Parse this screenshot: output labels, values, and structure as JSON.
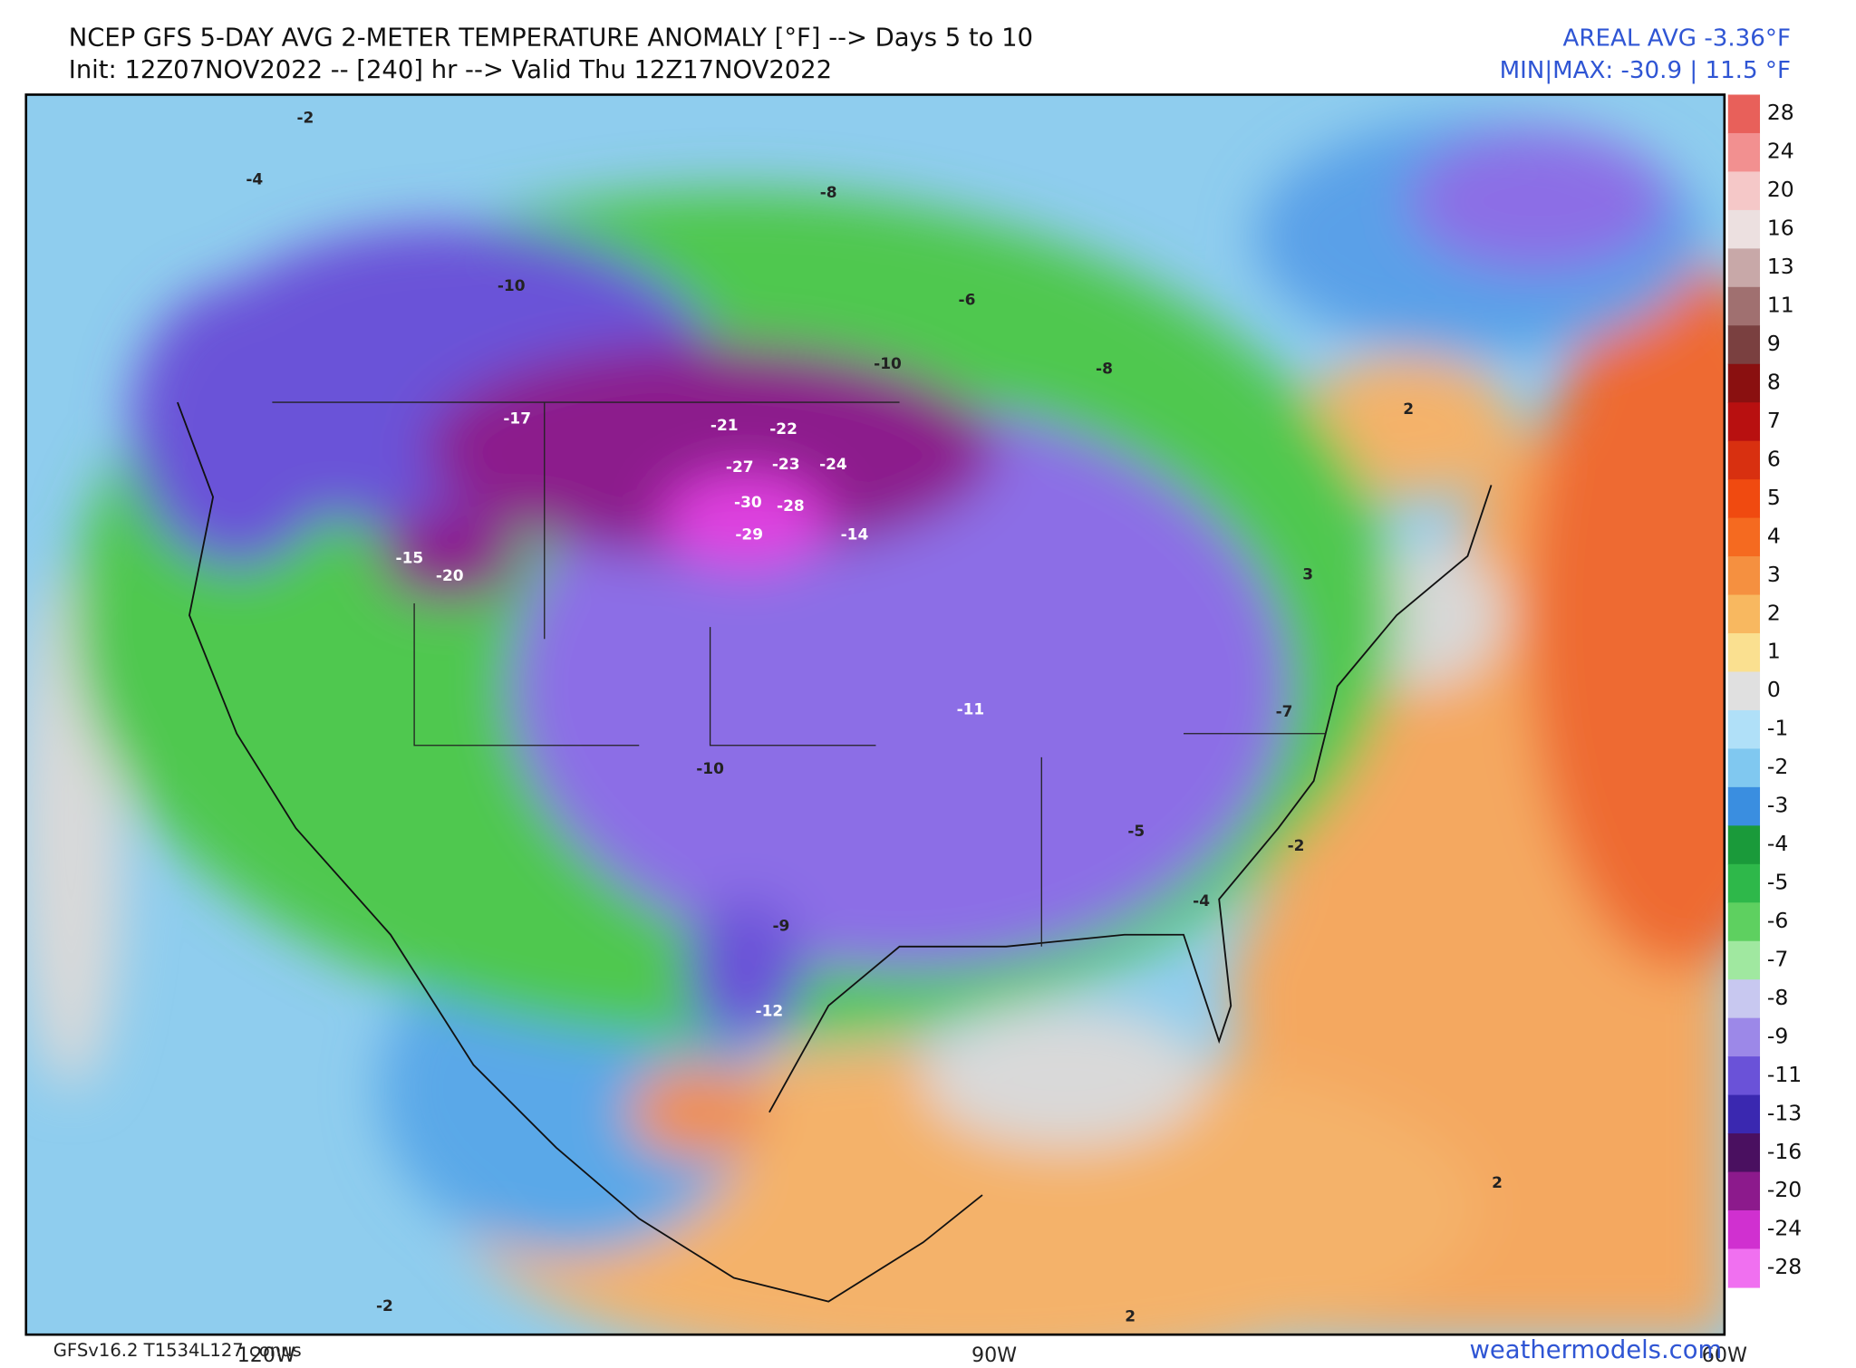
{
  "header": {
    "title": "NCEP GFS 5-DAY AVG 2-METER TEMPERATURE ANOMALY [°F] --> Days 5 to 10",
    "subtitle": "Init: 12Z07NOV2022 -- [240] hr --> Valid Thu 12Z17NOV2022",
    "areal_avg": "AREAL AVG -3.36°F",
    "min_max": "MIN|MAX: -30.9 | 11.5 °F"
  },
  "colorbar": {
    "levels": [
      28,
      24,
      20,
      16,
      13,
      11,
      9,
      8,
      7,
      6,
      5,
      4,
      3,
      2,
      1,
      0,
      -1,
      -2,
      -3,
      -4,
      -5,
      -6,
      -7,
      -8,
      -9,
      -11,
      -13,
      -16,
      -20,
      -24,
      -28
    ],
    "colors": [
      "#e8605a",
      "#f29090",
      "#f5c8c8",
      "#ece0e0",
      "#c8a8a8",
      "#a07070",
      "#7a4040",
      "#8a1010",
      "#b81010",
      "#d83010",
      "#f04a10",
      "#f56a20",
      "#f59040",
      "#f8b860",
      "#fae090",
      "#e0e0e0",
      "#b0e0f8",
      "#80c8f0",
      "#3a8ee0",
      "#1a9a3a",
      "#2eb84a",
      "#5ed060",
      "#a0e8a0",
      "#c8c8f0",
      "#9c88e8",
      "#6a52d8",
      "#3a28b0",
      "#4a1060",
      "#8c1a8c",
      "#d030d0",
      "#f070f0"
    ]
  },
  "map_labels": [
    -27,
    -30,
    -28,
    -29,
    -23,
    -24,
    -21,
    -22,
    -17,
    -10,
    -8,
    -6,
    -10,
    -12,
    -14,
    -11,
    -10,
    -9,
    -5,
    -4,
    -2,
    2,
    2,
    2,
    -2,
    -8,
    -4,
    -2,
    -15,
    -20,
    3,
    -7
  ],
  "axis_labels": [
    "120W",
    "90W",
    "60W"
  ],
  "footer": {
    "model": "GFSv16.2 T1534L127 conus",
    "site": "weathermodels.com"
  }
}
